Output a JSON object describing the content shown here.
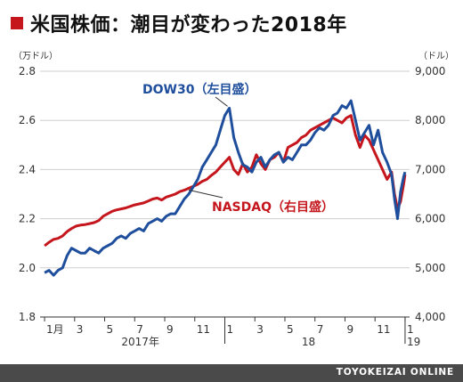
{
  "header": {
    "title": "米国株価：潮目が変わった2018年"
  },
  "footer": {
    "source": "TOYOKEIZAI ONLINE"
  },
  "colors": {
    "accent": "#c4161c",
    "dow": "#1f4e9c",
    "nasdaq": "#c4161c",
    "grid": "#cfcfcf",
    "footer_bg": "#4a4a4a"
  },
  "chart_data": {
    "type": "line",
    "title": "米国株価：潮目が変わった2018年",
    "grid": true,
    "left_axis": {
      "unit": "（万ドル）",
      "ticks": [
        "2.8",
        "2.6",
        "2.4",
        "2.2",
        "2.0",
        "1.8"
      ],
      "tick_values": [
        2.8,
        2.6,
        2.4,
        2.2,
        2.0,
        1.8
      ],
      "ylim": [
        1.8,
        2.8
      ]
    },
    "right_axis": {
      "unit": "（ドル）",
      "ticks": [
        "9,000",
        "8,000",
        "7,000",
        "6,000",
        "5,000",
        "4,000"
      ],
      "tick_values": [
        9000,
        8000,
        7000,
        6000,
        5000,
        4000
      ],
      "ylim": [
        4000,
        9000
      ]
    },
    "x_axis": {
      "month_labels": [
        {
          "pos": 0.0,
          "label": "1月"
        },
        {
          "pos": 2.0,
          "label": "3"
        },
        {
          "pos": 4.0,
          "label": "5"
        },
        {
          "pos": 6.0,
          "label": "7"
        },
        {
          "pos": 8.0,
          "label": "9"
        },
        {
          "pos": 10.0,
          "label": "11"
        },
        {
          "pos": 12.0,
          "label": "1"
        },
        {
          "pos": 14.0,
          "label": "3"
        },
        {
          "pos": 16.0,
          "label": "5"
        },
        {
          "pos": 18.0,
          "label": "7"
        },
        {
          "pos": 20.0,
          "label": "9"
        },
        {
          "pos": 22.0,
          "label": "11"
        },
        {
          "pos": 24.0,
          "label": "1"
        }
      ],
      "year_labels": [
        {
          "pos": 5.0,
          "label": "2017年"
        },
        {
          "pos": 17.0,
          "label": "18"
        },
        {
          "pos": 24.0,
          "label": "19"
        }
      ],
      "xlim": [
        -0.3,
        24.3
      ]
    },
    "series": [
      {
        "name": "DOW30（左目盛）",
        "axis": "left",
        "color": "#1f4e9c",
        "x": [
          0.0,
          0.3,
          0.6,
          0.9,
          1.2,
          1.5,
          1.8,
          2.1,
          2.4,
          2.7,
          3.0,
          3.3,
          3.6,
          3.9,
          4.2,
          4.5,
          4.8,
          5.1,
          5.4,
          5.7,
          6.0,
          6.3,
          6.6,
          6.9,
          7.2,
          7.5,
          7.8,
          8.1,
          8.4,
          8.7,
          9.0,
          9.3,
          9.6,
          9.9,
          10.2,
          10.5,
          10.8,
          11.1,
          11.4,
          11.7,
          12.0,
          12.3,
          12.6,
          12.9,
          13.2,
          13.5,
          13.8,
          14.1,
          14.4,
          14.7,
          15.0,
          15.3,
          15.6,
          15.9,
          16.2,
          16.5,
          16.8,
          17.1,
          17.4,
          17.7,
          18.0,
          18.3,
          18.6,
          18.9,
          19.2,
          19.5,
          19.8,
          20.1,
          20.4,
          20.7,
          21.0,
          21.3,
          21.6,
          21.9,
          22.2,
          22.5,
          22.8,
          23.1,
          23.3,
          23.5,
          23.7,
          23.9,
          24.0
        ],
        "values": [
          1.98,
          1.99,
          1.97,
          1.99,
          2.0,
          2.05,
          2.08,
          2.07,
          2.06,
          2.06,
          2.08,
          2.07,
          2.06,
          2.08,
          2.09,
          2.1,
          2.12,
          2.13,
          2.12,
          2.14,
          2.15,
          2.16,
          2.15,
          2.18,
          2.19,
          2.2,
          2.19,
          2.21,
          2.22,
          2.22,
          2.25,
          2.28,
          2.3,
          2.33,
          2.36,
          2.41,
          2.44,
          2.47,
          2.5,
          2.56,
          2.62,
          2.65,
          2.53,
          2.47,
          2.42,
          2.41,
          2.39,
          2.43,
          2.45,
          2.41,
          2.44,
          2.46,
          2.47,
          2.43,
          2.45,
          2.44,
          2.47,
          2.5,
          2.5,
          2.52,
          2.55,
          2.57,
          2.56,
          2.58,
          2.62,
          2.63,
          2.66,
          2.65,
          2.68,
          2.6,
          2.52,
          2.55,
          2.58,
          2.5,
          2.56,
          2.47,
          2.43,
          2.38,
          2.28,
          2.2,
          2.31,
          2.37,
          2.39
        ]
      },
      {
        "name": "NASDAQ（右目盛）",
        "axis": "right",
        "color": "#c4161c",
        "x": [
          0.0,
          0.3,
          0.6,
          0.9,
          1.2,
          1.5,
          1.8,
          2.1,
          2.4,
          2.7,
          3.0,
          3.3,
          3.6,
          3.9,
          4.2,
          4.5,
          4.8,
          5.1,
          5.4,
          5.7,
          6.0,
          6.3,
          6.6,
          6.9,
          7.2,
          7.5,
          7.8,
          8.1,
          8.4,
          8.7,
          9.0,
          9.3,
          9.6,
          9.9,
          10.2,
          10.5,
          10.8,
          11.1,
          11.4,
          11.7,
          12.0,
          12.3,
          12.6,
          12.9,
          13.2,
          13.5,
          13.8,
          14.1,
          14.4,
          14.7,
          15.0,
          15.3,
          15.6,
          15.9,
          16.2,
          16.5,
          16.8,
          17.1,
          17.4,
          17.7,
          18.0,
          18.3,
          18.6,
          18.9,
          19.2,
          19.5,
          19.8,
          20.1,
          20.4,
          20.7,
          21.0,
          21.3,
          21.6,
          21.9,
          22.2,
          22.5,
          22.8,
          23.1,
          23.3,
          23.5,
          23.7,
          23.9,
          24.0
        ],
        "values": [
          5450,
          5520,
          5580,
          5600,
          5650,
          5740,
          5800,
          5850,
          5870,
          5880,
          5900,
          5920,
          5960,
          6050,
          6100,
          6150,
          6180,
          6200,
          6220,
          6250,
          6280,
          6300,
          6320,
          6360,
          6400,
          6420,
          6380,
          6440,
          6470,
          6500,
          6550,
          6580,
          6620,
          6660,
          6700,
          6760,
          6800,
          6880,
          6950,
          7050,
          7150,
          7250,
          7000,
          6900,
          7120,
          6950,
          7050,
          7300,
          7120,
          7000,
          7200,
          7250,
          7350,
          7150,
          7450,
          7500,
          7550,
          7650,
          7700,
          7800,
          7850,
          7900,
          7950,
          8000,
          8050,
          8000,
          7950,
          8050,
          8100,
          7700,
          7450,
          7700,
          7600,
          7400,
          7200,
          7000,
          6800,
          6950,
          6500,
          6200,
          6350,
          6700,
          6900
        ]
      }
    ],
    "annotations": [
      {
        "series": "DOW30（左目盛）",
        "text": "DOW30（左目盛）"
      },
      {
        "series": "NASDAQ（右目盛）",
        "text": "NASDAQ（右目盛）"
      }
    ]
  }
}
